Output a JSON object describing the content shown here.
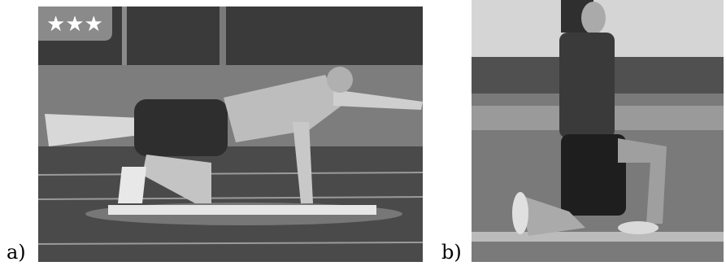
{
  "figure": {
    "panels": [
      {
        "label": "a)",
        "badge": "★★★"
      },
      {
        "label": "b)"
      }
    ]
  }
}
